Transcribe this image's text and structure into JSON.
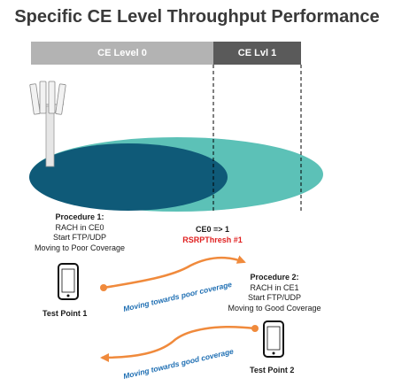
{
  "title": "Specific CE Level Throughput Performance",
  "ce_bar": {
    "level0": "CE Level 0",
    "level1": "CE Lvl 1"
  },
  "transition": {
    "text": "CE0 => 1",
    "threshold": "RSRPThresh #1"
  },
  "procedure1": {
    "title": "Procedure 1:",
    "lines": [
      "RACH in CE0",
      "Start FTP/UDP",
      "Moving to Poor Coverage"
    ]
  },
  "procedure2": {
    "title": "Procedure 2:",
    "lines": [
      "RACH in CE1",
      "Start FTP/UDP",
      "Moving to Good Coverage"
    ]
  },
  "test_point_1": "Test Point 1",
  "test_point_2": "Test Point 2",
  "arrow_poor": "Moving towards poor coverage",
  "arrow_good": "Moving towards good coverage",
  "colors": {
    "inner_ellipse": "#0f5a78",
    "outer_ellipse": "#5cc1b7",
    "arrow": "#f08a3c",
    "arrow_text": "#1f6fb3",
    "threshold": "#e02020"
  }
}
